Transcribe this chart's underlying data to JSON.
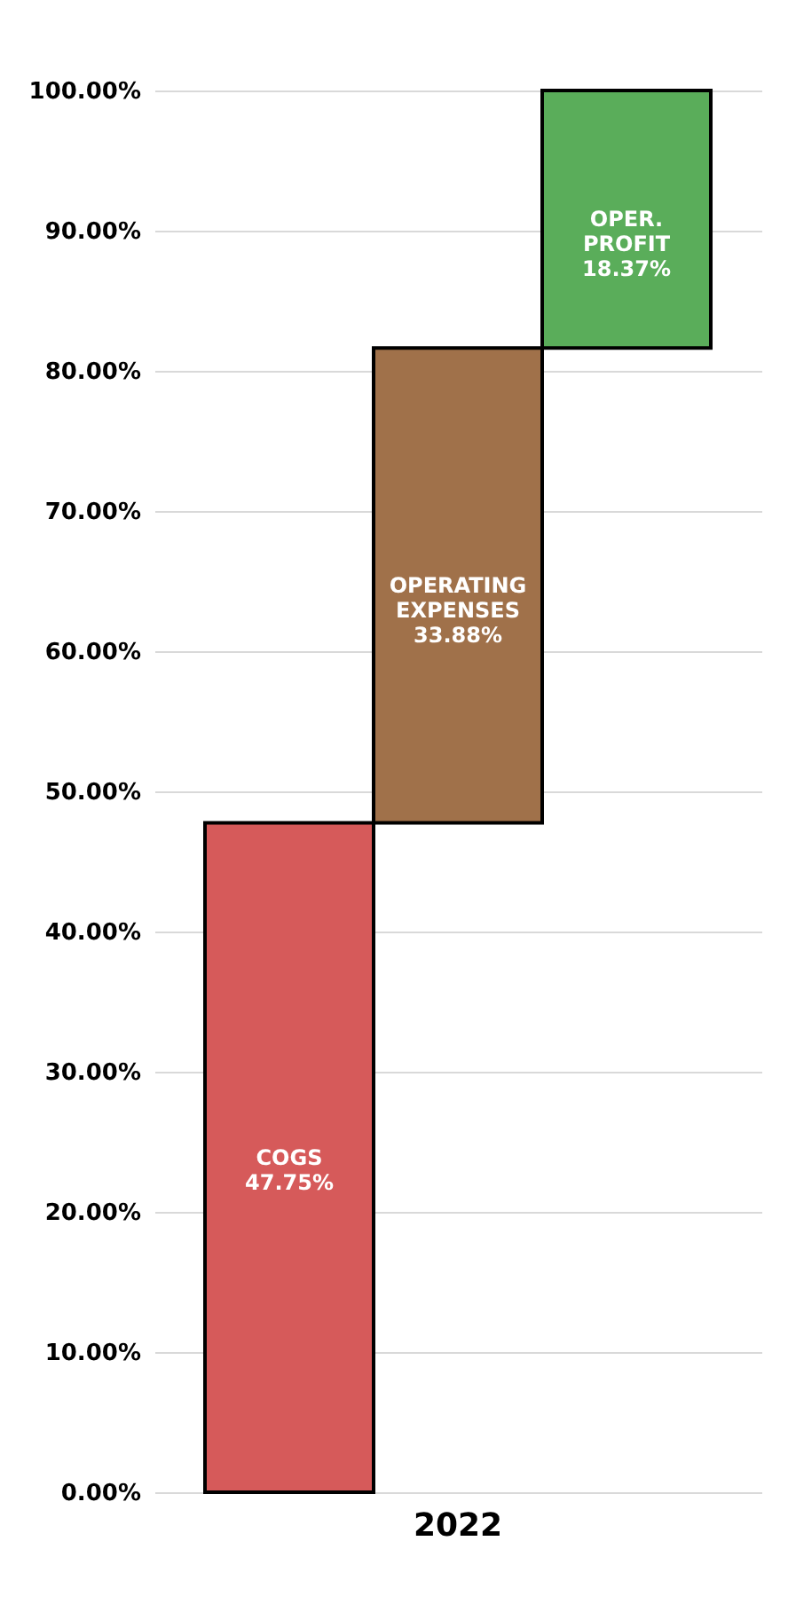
{
  "chart_data": {
    "type": "bar",
    "categories": [
      null,
      "2022",
      null
    ],
    "values": [
      47.75,
      33.88,
      18.37
    ],
    "base": [
      0,
      47.75,
      81.63
    ],
    "colors": [
      "#d65a5a",
      "#a0714a",
      "#5aad5a"
    ],
    "value_labels": [
      "COGS\n47.75%",
      "OPERATING\nEXPENSES\n33.88%",
      "OPER.\nPROFIT\n18.37%"
    ],
    "ylim": [
      0,
      100
    ],
    "yticks": [
      {
        "value": 0,
        "label": "0.00%"
      },
      {
        "value": 10,
        "label": "10.00%"
      },
      {
        "value": 20,
        "label": "20.00%"
      },
      {
        "value": 30,
        "label": "30.00%"
      },
      {
        "value": 40,
        "label": "40.00%"
      },
      {
        "value": 50,
        "label": "50.00%"
      },
      {
        "value": 60,
        "label": "60.00%"
      },
      {
        "value": 70,
        "label": "70.00%"
      },
      {
        "value": 80,
        "label": "80.00%"
      },
      {
        "value": 90,
        "label": "90.00%"
      },
      {
        "value": 100,
        "label": "100.00%"
      }
    ],
    "grid": "y"
  }
}
